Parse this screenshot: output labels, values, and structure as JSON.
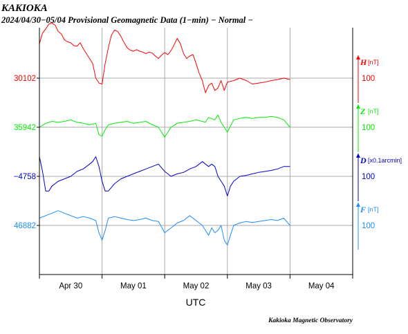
{
  "station": "KAKIOKA",
  "subtitle": "2024/04/30−05/04  Provisional Geomagnetic Data (1−min)  − Normal −",
  "footer": "Kakioka Magnetic Observatory",
  "chart_data": {
    "type": "line",
    "title": "KAKIOKA",
    "subtitle": "2024/04/30−05/04  Provisional Geomagnetic Data (1−min)  − Normal −",
    "xlabel": "UTC",
    "x_ticks": [
      "Apr 30",
      "May 01",
      "May 02",
      "May 03",
      "May 04"
    ],
    "x_range_days": [
      0,
      5
    ],
    "data_end_day": 4,
    "grid": true,
    "legend": "right-side",
    "series": [
      {
        "name": "H",
        "unit": "[nT]",
        "baseline": "30102",
        "scale": "100",
        "scale_value": 100,
        "color": "#ff0000",
        "x": [
          0,
          0.05,
          0.1,
          0.15,
          0.2,
          0.25,
          0.3,
          0.35,
          0.4,
          0.45,
          0.5,
          0.55,
          0.6,
          0.65,
          0.7,
          0.75,
          0.8,
          0.85,
          0.9,
          0.95,
          1.0,
          1.05,
          1.1,
          1.15,
          1.2,
          1.25,
          1.3,
          1.35,
          1.4,
          1.45,
          1.5,
          1.55,
          1.6,
          1.65,
          1.7,
          1.75,
          1.8,
          1.85,
          1.9,
          1.95,
          2.0,
          2.05,
          2.1,
          2.15,
          2.2,
          2.25,
          2.3,
          2.35,
          2.4,
          2.45,
          2.5,
          2.55,
          2.6,
          2.65,
          2.7,
          2.75,
          2.8,
          2.85,
          2.9,
          2.95,
          3.0,
          3.1,
          3.2,
          3.3,
          3.4,
          3.5,
          3.6,
          3.7,
          3.8,
          3.9,
          4.0
        ],
        "y": [
          70,
          92,
          100,
          110,
          112,
          108,
          95,
          90,
          78,
          74,
          72,
          66,
          65,
          72,
          60,
          50,
          40,
          30,
          0,
          -10,
          -12,
          30,
          62,
          88,
          98,
          95,
          85,
          73,
          62,
          57,
          55,
          58,
          55,
          53,
          50,
          53,
          51,
          45,
          40,
          47,
          52,
          48,
          56,
          68,
          81,
          70,
          50,
          40,
          45,
          48,
          30,
          10,
          -5,
          -30,
          -15,
          -10,
          -25,
          -20,
          -5,
          -25,
          -8,
          -5,
          0,
          -5,
          -12,
          -10,
          -8,
          -5,
          -3,
          0,
          -3
        ]
      },
      {
        "name": "Z",
        "unit": "[nT]",
        "baseline": "35942",
        "scale": "100",
        "scale_value": 100,
        "color": "#00ee00",
        "x": [
          0,
          0.1,
          0.2,
          0.3,
          0.4,
          0.5,
          0.6,
          0.7,
          0.8,
          0.9,
          0.95,
          1.0,
          1.05,
          1.1,
          1.2,
          1.3,
          1.4,
          1.5,
          1.6,
          1.7,
          1.8,
          1.9,
          2.0,
          2.05,
          2.1,
          2.2,
          2.3,
          2.4,
          2.5,
          2.6,
          2.65,
          2.7,
          2.8,
          2.85,
          2.9,
          2.95,
          3.0,
          3.1,
          3.2,
          3.3,
          3.4,
          3.5,
          3.6,
          3.7,
          3.8,
          3.9,
          4.0
        ],
        "y": [
          0,
          8,
          12,
          10,
          12,
          15,
          10,
          8,
          5,
          8,
          -15,
          -18,
          -5,
          5,
          8,
          10,
          12,
          8,
          10,
          12,
          5,
          0,
          -20,
          -10,
          0,
          8,
          10,
          12,
          15,
          12,
          10,
          20,
          15,
          25,
          10,
          0,
          -10,
          15,
          18,
          20,
          18,
          20,
          20,
          22,
          20,
          15,
          0
        ]
      },
      {
        "name": "D",
        "unit": "[x0.1arcmin]",
        "baseline": "−4758",
        "scale": "100",
        "scale_value": 100,
        "color": "#0000cc",
        "x": [
          0,
          0.05,
          0.1,
          0.15,
          0.2,
          0.3,
          0.4,
          0.5,
          0.6,
          0.7,
          0.75,
          0.8,
          0.85,
          0.9,
          0.95,
          1.0,
          1.05,
          1.1,
          1.2,
          1.3,
          1.4,
          1.5,
          1.6,
          1.7,
          1.8,
          1.9,
          2.0,
          2.1,
          2.2,
          2.3,
          2.4,
          2.5,
          2.6,
          2.7,
          2.75,
          2.8,
          2.85,
          2.9,
          2.95,
          3.0,
          3.05,
          3.1,
          3.2,
          3.3,
          3.4,
          3.5,
          3.6,
          3.7,
          3.8,
          3.9,
          4.0
        ],
        "y": [
          40,
          10,
          -30,
          -30,
          -20,
          -10,
          -5,
          0,
          10,
          15,
          20,
          25,
          30,
          40,
          20,
          -10,
          -30,
          -30,
          -15,
          -5,
          0,
          5,
          10,
          15,
          20,
          25,
          10,
          0,
          5,
          8,
          15,
          20,
          30,
          20,
          25,
          20,
          0,
          -10,
          -20,
          -40,
          -20,
          -10,
          0,
          2,
          5,
          8,
          10,
          12,
          15,
          20,
          20
        ]
      },
      {
        "name": "F",
        "unit": "[nT]",
        "baseline": "46882",
        "scale": "100",
        "scale_value": 100,
        "color": "#1a8cff",
        "x": [
          0,
          0.1,
          0.2,
          0.3,
          0.4,
          0.5,
          0.6,
          0.7,
          0.8,
          0.9,
          0.95,
          1.0,
          1.05,
          1.1,
          1.2,
          1.3,
          1.4,
          1.5,
          1.6,
          1.7,
          1.8,
          1.9,
          2.0,
          2.1,
          2.2,
          2.3,
          2.4,
          2.5,
          2.6,
          2.65,
          2.7,
          2.75,
          2.8,
          2.85,
          2.9,
          2.95,
          3.0,
          3.05,
          3.1,
          3.2,
          3.3,
          3.4,
          3.5,
          3.6,
          3.7,
          3.8,
          3.9,
          4.0
        ],
        "y": [
          15,
          20,
          25,
          30,
          25,
          20,
          15,
          18,
          15,
          10,
          -15,
          -30,
          -10,
          15,
          18,
          15,
          12,
          10,
          12,
          15,
          10,
          8,
          -15,
          -5,
          5,
          10,
          20,
          10,
          0,
          -10,
          -20,
          -5,
          -15,
          -10,
          0,
          -30,
          -40,
          -20,
          0,
          5,
          8,
          6,
          8,
          10,
          12,
          10,
          15,
          0
        ]
      }
    ]
  }
}
